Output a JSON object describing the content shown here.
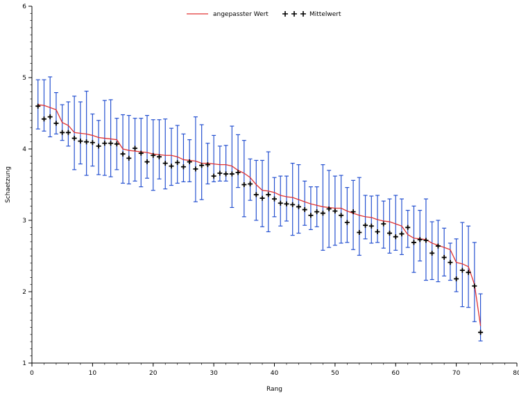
{
  "chart_data": {
    "type": "line",
    "xlabel": "Rang",
    "ylabel": "Schaetzung",
    "xlim": [
      0,
      80
    ],
    "ylim": [
      1,
      6
    ],
    "xticks": [
      0,
      10,
      20,
      30,
      40,
      50,
      60,
      70,
      80
    ],
    "yticks": [
      1,
      2,
      3,
      4,
      5,
      6
    ],
    "grid": false,
    "legend": {
      "placement": "top-center",
      "entries": [
        {
          "name": "angepasster Wert",
          "symbol": "line",
          "color": "#e03030"
        },
        {
          "name": "Mittelwert",
          "symbol": "plus",
          "color": "#000000"
        }
      ]
    },
    "colors": {
      "fit": "#e03030",
      "mean": "#000000",
      "errorbar": "#2450d0"
    },
    "series": [
      {
        "name": "angepasster Wert",
        "x": [
          1,
          2,
          3,
          4,
          5,
          6,
          7,
          8,
          9,
          10,
          11,
          12,
          13,
          14,
          15,
          16,
          17,
          18,
          19,
          20,
          21,
          22,
          23,
          24,
          25,
          26,
          27,
          28,
          29,
          30,
          31,
          32,
          33,
          34,
          35,
          36,
          37,
          38,
          39,
          40,
          41,
          42,
          43,
          44,
          45,
          46,
          47,
          48,
          49,
          50,
          51,
          52,
          53,
          54,
          55,
          56,
          57,
          58,
          59,
          60,
          61,
          62,
          63,
          64,
          65,
          66,
          67,
          68,
          69,
          70,
          71,
          72,
          73,
          74
        ],
        "y": [
          4.62,
          4.61,
          4.58,
          4.55,
          4.37,
          4.33,
          4.23,
          4.22,
          4.21,
          4.19,
          4.16,
          4.15,
          4.14,
          4.13,
          4.0,
          3.98,
          3.97,
          3.96,
          3.95,
          3.93,
          3.92,
          3.91,
          3.91,
          3.89,
          3.85,
          3.84,
          3.83,
          3.8,
          3.8,
          3.79,
          3.78,
          3.78,
          3.76,
          3.7,
          3.66,
          3.6,
          3.5,
          3.42,
          3.41,
          3.39,
          3.35,
          3.33,
          3.32,
          3.29,
          3.26,
          3.23,
          3.21,
          3.19,
          3.18,
          3.17,
          3.17,
          3.13,
          3.1,
          3.07,
          3.05,
          3.04,
          3.01,
          2.99,
          2.98,
          2.95,
          2.92,
          2.8,
          2.75,
          2.74,
          2.73,
          2.68,
          2.65,
          2.62,
          2.59,
          2.41,
          2.39,
          2.35,
          2.1,
          1.52
        ]
      },
      {
        "name": "Mittelwert",
        "x": [
          1,
          2,
          3,
          4,
          5,
          6,
          7,
          8,
          9,
          10,
          11,
          12,
          13,
          14,
          15,
          16,
          17,
          18,
          19,
          20,
          21,
          22,
          23,
          24,
          25,
          26,
          27,
          28,
          29,
          30,
          31,
          32,
          33,
          34,
          35,
          36,
          37,
          38,
          39,
          40,
          41,
          42,
          43,
          44,
          45,
          46,
          47,
          48,
          49,
          50,
          51,
          52,
          53,
          54,
          55,
          56,
          57,
          58,
          59,
          60,
          61,
          62,
          63,
          64,
          65,
          66,
          67,
          68,
          69,
          70,
          71,
          72,
          73,
          74
        ],
        "y": [
          4.6,
          4.42,
          4.45,
          4.36,
          4.23,
          4.23,
          4.15,
          4.11,
          4.1,
          4.09,
          4.04,
          4.08,
          4.08,
          4.07,
          3.93,
          3.87,
          4.01,
          3.94,
          3.82,
          3.91,
          3.89,
          3.8,
          3.76,
          3.81,
          3.75,
          3.82,
          3.72,
          3.77,
          3.78,
          3.62,
          3.66,
          3.65,
          3.65,
          3.67,
          3.5,
          3.51,
          3.36,
          3.31,
          3.36,
          3.3,
          3.24,
          3.23,
          3.22,
          3.19,
          3.15,
          3.07,
          3.12,
          3.1,
          3.16,
          3.13,
          3.07,
          2.97,
          3.12,
          2.83,
          2.93,
          2.92,
          2.84,
          2.95,
          2.82,
          2.77,
          2.81,
          2.9,
          2.69,
          2.73,
          2.72,
          2.54,
          2.64,
          2.48,
          2.41,
          2.18,
          2.3,
          2.27,
          2.08,
          1.43
        ],
        "lower": [
          4.28,
          4.25,
          4.17,
          4.21,
          4.12,
          4.04,
          3.71,
          3.79,
          3.63,
          3.76,
          3.64,
          3.63,
          3.61,
          3.71,
          3.52,
          3.51,
          3.55,
          3.47,
          3.59,
          3.42,
          3.58,
          3.44,
          3.49,
          3.52,
          3.54,
          3.54,
          3.26,
          3.29,
          3.51,
          3.54,
          3.55,
          3.55,
          3.18,
          3.46,
          3.05,
          3.28,
          3.0,
          2.91,
          2.84,
          3.05,
          2.92,
          2.99,
          2.79,
          2.82,
          2.93,
          2.87,
          2.91,
          2.58,
          2.62,
          2.65,
          2.68,
          2.69,
          2.59,
          2.51,
          2.74,
          2.68,
          2.69,
          2.61,
          2.54,
          2.58,
          2.52,
          2.62,
          2.27,
          2.43,
          2.16,
          2.17,
          2.14,
          2.22,
          2.16,
          2.0,
          1.79,
          1.78,
          1.58,
          1.31
        ],
        "upper": [
          4.97,
          4.97,
          5.01,
          4.79,
          4.62,
          4.66,
          4.74,
          4.66,
          4.81,
          4.49,
          4.4,
          4.68,
          4.69,
          4.43,
          4.48,
          4.47,
          4.43,
          4.43,
          4.47,
          4.41,
          4.41,
          4.42,
          4.29,
          4.33,
          4.21,
          4.13,
          4.45,
          4.34,
          4.08,
          4.19,
          4.04,
          4.05,
          4.32,
          4.2,
          4.12,
          3.86,
          3.84,
          3.84,
          3.96,
          3.6,
          3.62,
          3.62,
          3.8,
          3.78,
          3.55,
          3.47,
          3.47,
          3.78,
          3.7,
          3.62,
          3.63,
          3.46,
          3.56,
          3.6,
          3.35,
          3.34,
          3.35,
          3.27,
          3.3,
          3.35,
          3.3,
          3.14,
          3.2,
          3.14,
          3.3,
          2.98,
          3.0,
          2.89,
          2.68,
          2.74,
          2.97,
          2.92,
          2.69,
          1.97
        ]
      }
    ]
  }
}
